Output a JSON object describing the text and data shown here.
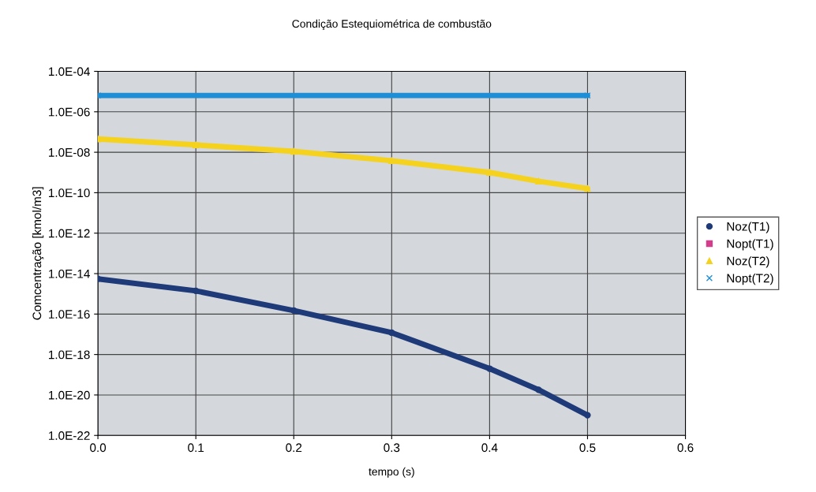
{
  "chart_data": {
    "type": "line",
    "title": "Condição Estequiométrica de combustão",
    "xlabel": "tempo (s)",
    "ylabel": "Comcentração [kmol/m3]",
    "log": true,
    "grid": true,
    "legend": "right",
    "line_style": "solid",
    "xlim": [
      0,
      0.6
    ],
    "xticks": [
      {
        "value": 0,
        "label": "0.0"
      },
      {
        "value": 0.1,
        "label": "0.1"
      },
      {
        "value": 0.2,
        "label": "0.2"
      },
      {
        "value": 0.3,
        "label": "0.3"
      },
      {
        "value": 0.4,
        "label": "0.4"
      },
      {
        "value": 0.5,
        "label": "0.5"
      },
      {
        "value": 0.6,
        "label": "0.6"
      }
    ],
    "ylim": [
      1e-22,
      0.0001
    ],
    "yticks": [
      {
        "value": 0.0001,
        "label": "1.0E-04"
      },
      {
        "value": 1e-06,
        "label": "1.0E-06"
      },
      {
        "value": 1e-08,
        "label": "1.0E-08"
      },
      {
        "value": 1e-10,
        "label": "1.0E-10"
      },
      {
        "value": 1e-12,
        "label": "1.0E-12"
      },
      {
        "value": 1e-14,
        "label": "1.0E-14"
      },
      {
        "value": 1e-16,
        "label": "1.0E-16"
      },
      {
        "value": 1e-18,
        "label": "1.0E-18"
      },
      {
        "value": 1e-20,
        "label": "1.0E-20"
      },
      {
        "value": 1e-22,
        "label": "1.0E-22"
      }
    ],
    "x": [
      0,
      0.1,
      0.2,
      0.3,
      0.4,
      0.45,
      0.5
    ],
    "series": [
      {
        "name": "Noz(T1)",
        "color": "#1f3a78",
        "marker": "circle",
        "values": [
          5.5e-15,
          1.4e-15,
          1.5e-16,
          1.2e-17,
          2e-19,
          1.8e-20,
          1e-21
        ]
      },
      {
        "name": "Nopt(T1)",
        "color": "#d63c8c",
        "marker": "square",
        "values": [
          null,
          null,
          null,
          null,
          null,
          null,
          null
        ]
      },
      {
        "name": "Noz(T2)",
        "color": "#f5d21e",
        "marker": "triangle",
        "values": [
          4.5e-08,
          2.3e-08,
          1.1e-08,
          3.8e-09,
          1e-09,
          3.7e-10,
          1.6e-10
        ]
      },
      {
        "name": "Nopt(T2)",
        "color": "#1e8fd6",
        "marker": "cross",
        "x": [
          0,
          0.5
        ],
        "values": [
          6.4e-06,
          6.4e-06
        ]
      }
    ]
  }
}
